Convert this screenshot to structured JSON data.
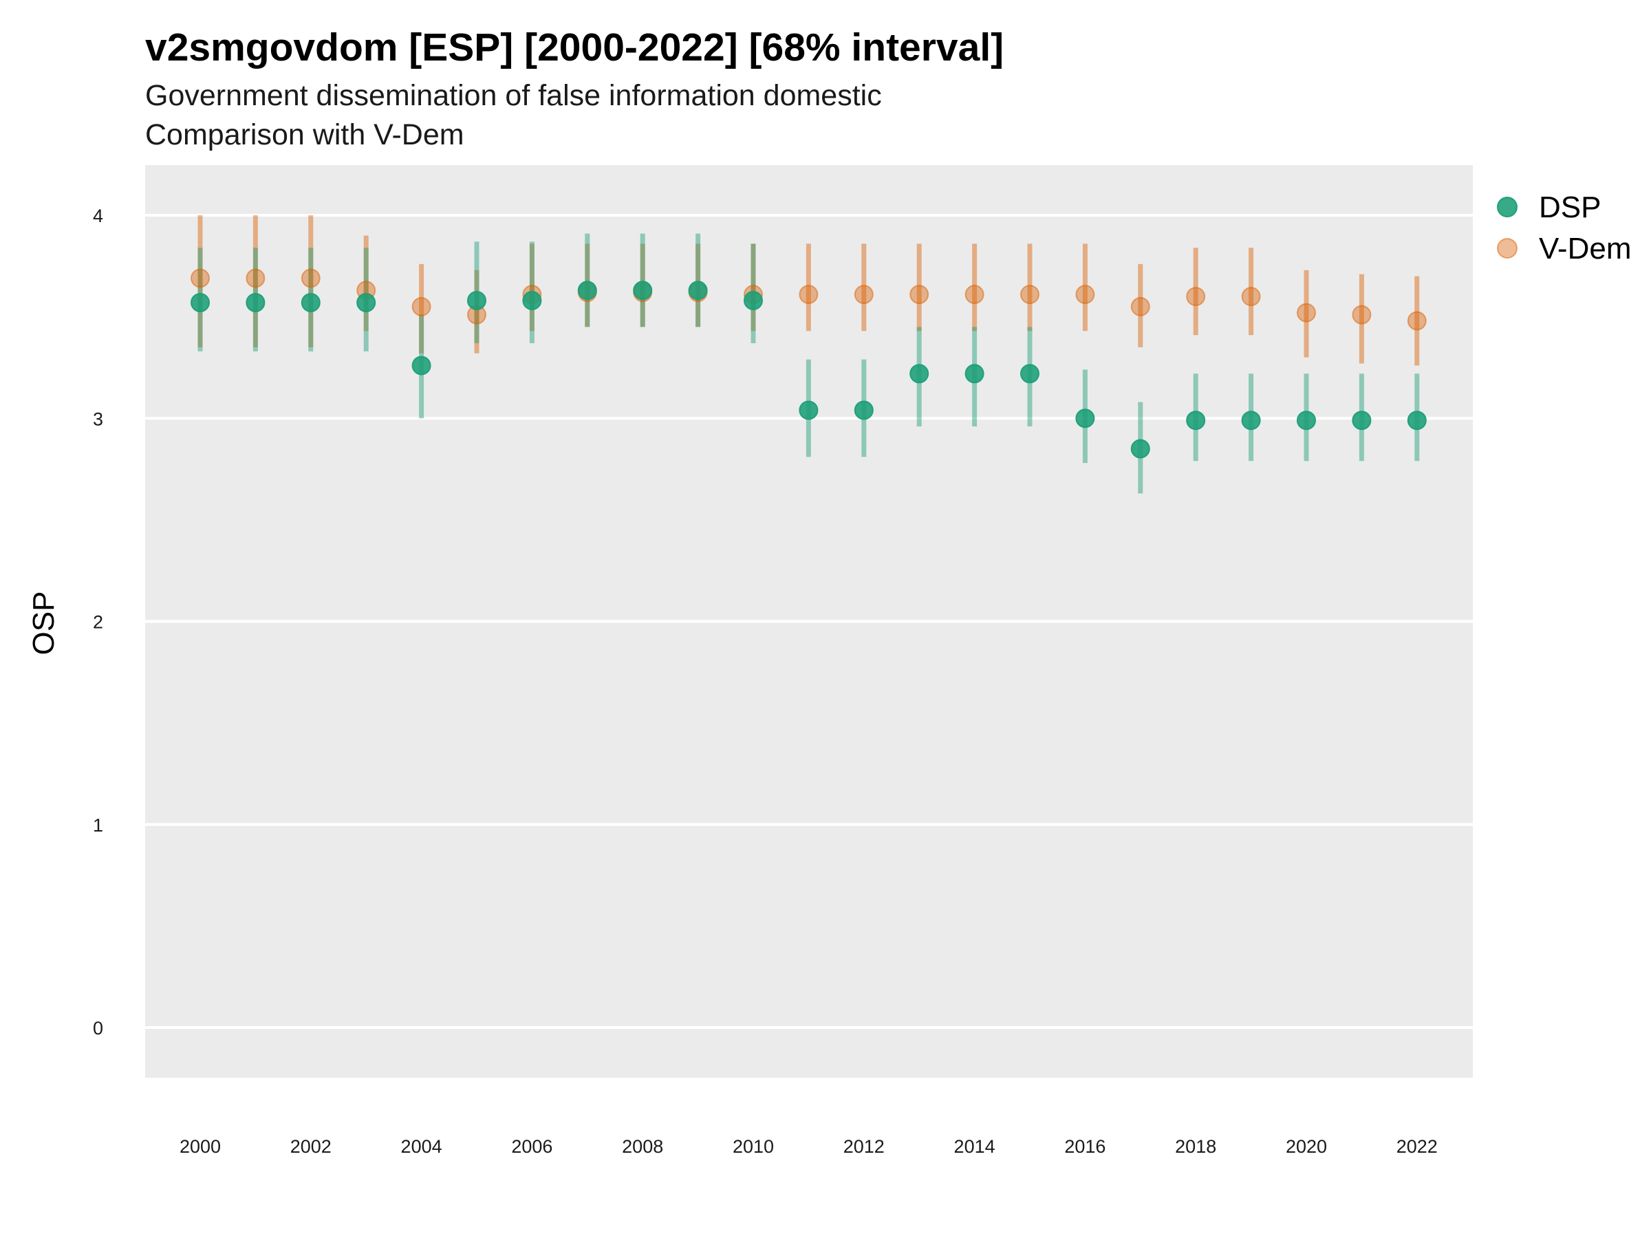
{
  "chart_data": {
    "type": "scatter",
    "title": "v2smgovdom [ESP] [2000-2022] [68% interval]",
    "subtitle": [
      "Government dissemination of false information domestic",
      "Comparison with V-Dem"
    ],
    "ylabel": "OSP",
    "xlabel": "",
    "ylim": [
      -0.25,
      4.25
    ],
    "yticks": [
      0,
      1,
      2,
      3,
      4
    ],
    "xlim": [
      1999.05,
      2023.0
    ],
    "xticks": [
      2000,
      2002,
      2004,
      2006,
      2008,
      2010,
      2012,
      2014,
      2016,
      2018,
      2020,
      2022
    ],
    "grid": true,
    "legend_position": "right",
    "x": [
      2000,
      2001,
      2002,
      2003,
      2004,
      2005,
      2006,
      2007,
      2008,
      2009,
      2010,
      2011,
      2012,
      2013,
      2014,
      2015,
      2016,
      2017,
      2018,
      2019,
      2020,
      2021,
      2022
    ],
    "series": [
      {
        "name": "V-Dem",
        "color": "#d95f02",
        "values": [
          3.69,
          3.69,
          3.69,
          3.63,
          3.55,
          3.51,
          3.61,
          3.62,
          3.62,
          3.62,
          3.61,
          3.61,
          3.61,
          3.61,
          3.61,
          3.61,
          3.61,
          3.55,
          3.6,
          3.6,
          3.52,
          3.51,
          3.48
        ],
        "lower": [
          3.35,
          3.35,
          3.35,
          3.43,
          3.32,
          3.32,
          3.43,
          3.45,
          3.45,
          3.45,
          3.43,
          3.43,
          3.43,
          3.43,
          3.43,
          3.43,
          3.43,
          3.35,
          3.41,
          3.41,
          3.3,
          3.27,
          3.26
        ],
        "upper": [
          4.0,
          4.0,
          4.0,
          3.9,
          3.76,
          3.73,
          3.86,
          3.86,
          3.86,
          3.86,
          3.86,
          3.86,
          3.86,
          3.86,
          3.86,
          3.86,
          3.86,
          3.76,
          3.84,
          3.84,
          3.73,
          3.71,
          3.7
        ]
      },
      {
        "name": "DSP",
        "color": "#1b9e77",
        "values": [
          3.57,
          3.57,
          3.57,
          3.57,
          3.26,
          3.58,
          3.58,
          3.63,
          3.63,
          3.63,
          3.58,
          3.04,
          3.04,
          3.22,
          3.22,
          3.22,
          3.0,
          2.85,
          2.99,
          2.99,
          2.99,
          2.99,
          2.99
        ],
        "lower": [
          3.33,
          3.33,
          3.33,
          3.33,
          3.0,
          3.37,
          3.37,
          3.45,
          3.45,
          3.45,
          3.37,
          2.81,
          2.81,
          2.96,
          2.96,
          2.96,
          2.78,
          2.63,
          2.79,
          2.79,
          2.79,
          2.79,
          2.79
        ],
        "upper": [
          3.84,
          3.84,
          3.84,
          3.84,
          3.51,
          3.87,
          3.87,
          3.91,
          3.91,
          3.91,
          3.86,
          3.29,
          3.29,
          3.45,
          3.45,
          3.45,
          3.24,
          3.08,
          3.22,
          3.22,
          3.22,
          3.22,
          3.22
        ]
      }
    ],
    "legend": [
      {
        "name": "DSP",
        "color": "#1b9e77"
      },
      {
        "name": "V-Dem",
        "color": "#d95f02"
      }
    ]
  }
}
